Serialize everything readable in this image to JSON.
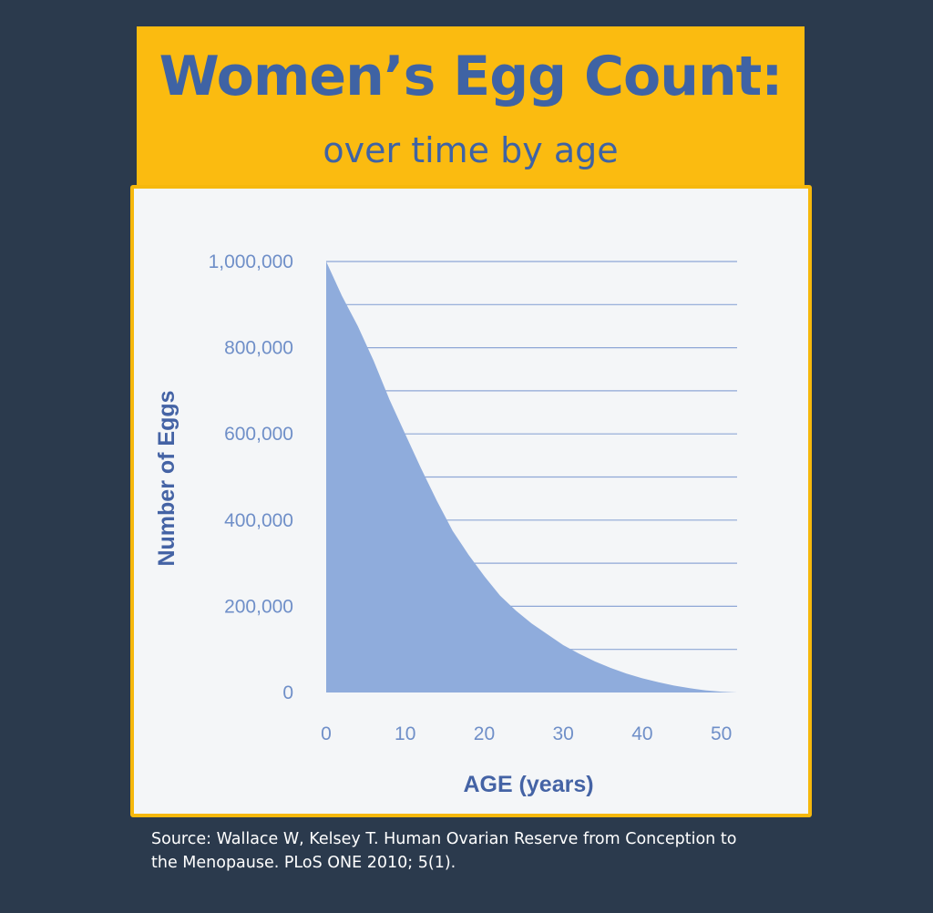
{
  "header": {
    "title": "Women’s Egg Count:",
    "subtitle": "over time by age"
  },
  "chart_data": {
    "type": "area",
    "title": "Women’s Egg Count:",
    "subtitle": "over time by age",
    "xlabel": "AGE (years)",
    "ylabel": "Number of Eggs",
    "xlim": [
      0,
      52
    ],
    "ylim": [
      0,
      1000000
    ],
    "x_ticks": [
      0,
      10,
      20,
      30,
      40,
      50
    ],
    "x_tick_labels": [
      "0",
      "10",
      "20",
      "30",
      "40",
      "50"
    ],
    "y_ticks": [
      0,
      200000,
      400000,
      600000,
      800000,
      1000000
    ],
    "y_tick_labels": [
      "0",
      "200,000",
      "400,000",
      "600,000",
      "800,000",
      "1,000,000"
    ],
    "grid": true,
    "legend": "none",
    "colors": {
      "fill": "#8facdc",
      "grid": "#8ea7d6"
    },
    "series": [
      {
        "x": [
          0,
          2,
          4,
          6,
          8,
          10,
          12,
          14,
          16,
          18,
          20,
          22,
          24,
          26,
          28,
          30,
          32,
          34,
          36,
          38,
          40,
          42,
          44,
          46,
          48,
          50,
          52
        ],
        "values": [
          1000000,
          920000,
          850000,
          770000,
          680000,
          600000,
          520000,
          445000,
          375000,
          320000,
          270000,
          225000,
          190000,
          160000,
          135000,
          110000,
          90000,
          72000,
          57000,
          44000,
          33000,
          24000,
          16000,
          10000,
          5000,
          2000,
          0
        ]
      }
    ]
  },
  "source": {
    "line1": "Source: Wallace W, Kelsey T. Human Ovarian Reserve from Conception to",
    "line2": "the Menopause. PLoS ONE 2010; 5(1)."
  }
}
